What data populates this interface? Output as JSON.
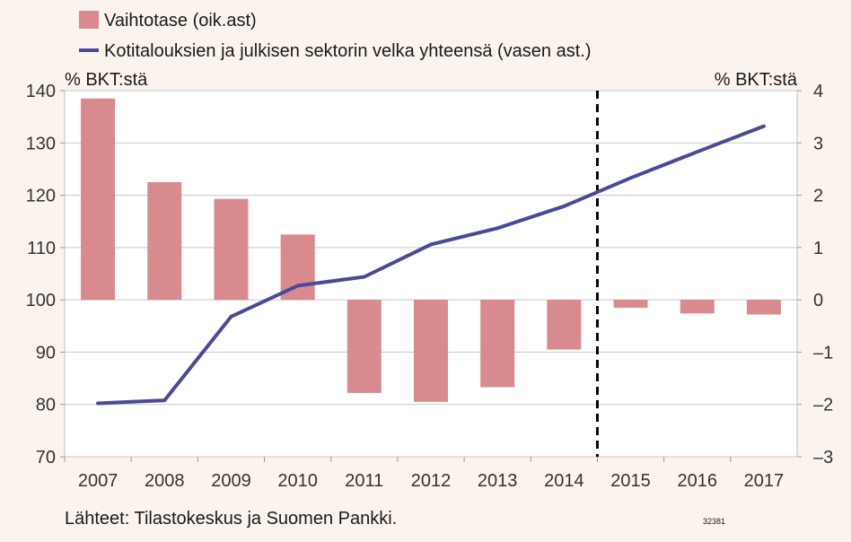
{
  "chart_data": {
    "type": "bar+line",
    "categories": [
      "2007",
      "2008",
      "2009",
      "2010",
      "2011",
      "2012",
      "2013",
      "2014",
      "2015",
      "2016",
      "2017"
    ],
    "series": [
      {
        "name": "Vaihtotase (oik.ast)",
        "type": "bar",
        "axis": "right",
        "color": "#d98a8e",
        "values": [
          3.85,
          2.25,
          1.93,
          1.25,
          -1.78,
          -1.95,
          -1.67,
          -0.95,
          -0.15,
          -0.26,
          -0.28
        ]
      },
      {
        "name": "Kotitalouksien ja julkisen sektorin velka yhteensä (vasen ast.)",
        "type": "line",
        "axis": "left",
        "color": "#4a4a96",
        "values": [
          80.2,
          80.8,
          96.8,
          102.7,
          104.4,
          110.6,
          113.7,
          117.9,
          123.3,
          128.3,
          133.2
        ]
      }
    ],
    "left_axis": {
      "label": "% BKT:stä",
      "ylim": [
        70,
        140
      ],
      "ticks": [
        70,
        80,
        90,
        100,
        110,
        120,
        130,
        140
      ]
    },
    "right_axis": {
      "label": "% BKT:stä",
      "ylim": [
        -3,
        4
      ],
      "ticks": [
        -3,
        -2,
        -1,
        0,
        1,
        2,
        3,
        4
      ]
    },
    "forecast_divider_after": "2014",
    "source": "Lähteet: Tilastokeskus ja Suomen Pankki.",
    "figure_id": "32381",
    "colors": {
      "grid": "#c9c9c9",
      "divider": "#000000",
      "plot_bg": "#ffffff",
      "page_bg": "#fbf4ee"
    }
  }
}
